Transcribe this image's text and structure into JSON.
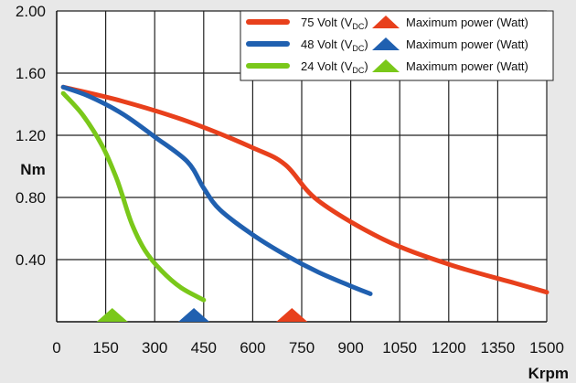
{
  "chart_data": {
    "type": "line",
    "title": "",
    "xlabel": "Krpm",
    "ylabel": "Nm",
    "xlim": [
      0,
      1500
    ],
    "ylim": [
      0,
      2.0
    ],
    "x_ticks": [
      "0",
      "150",
      "300",
      "450",
      "600",
      "750",
      "900",
      "1050",
      "1200",
      "1350",
      "1500"
    ],
    "x_tick_values": [
      0,
      150,
      300,
      450,
      600,
      750,
      900,
      1050,
      1200,
      1350,
      1500
    ],
    "y_ticks": [
      "0.40",
      "0.80",
      "1.20",
      "1.60",
      "2.00"
    ],
    "y_tick_values": [
      0.4,
      0.8,
      1.2,
      1.6,
      2.0
    ],
    "grid": true,
    "legend_position": "top-right",
    "series": [
      {
        "name": "75 Volt",
        "color": "#e8401c",
        "marker_label": "Maximum power (Watt)",
        "max_power_x": 720,
        "x": [
          20,
          200,
          400,
          600,
          700,
          800,
          1000,
          1200,
          1400,
          1500
        ],
        "y": [
          1.51,
          1.42,
          1.29,
          1.12,
          1.01,
          0.78,
          0.53,
          0.37,
          0.25,
          0.19
        ]
      },
      {
        "name": "48 Volt",
        "color": "#2060b0",
        "marker_label": "Maximum power (Watt)",
        "max_power_x": 420,
        "x": [
          20,
          100,
          200,
          300,
          400,
          450,
          500,
          600,
          700,
          800,
          900,
          960
        ],
        "y": [
          1.51,
          1.45,
          1.34,
          1.19,
          1.03,
          0.86,
          0.72,
          0.56,
          0.43,
          0.32,
          0.23,
          0.18
        ]
      },
      {
        "name": "24 Volt",
        "color": "#7ac81a",
        "marker_label": "Maximum power (Watt)",
        "max_power_x": 170,
        "x": [
          20,
          80,
          140,
          180,
          200,
          230,
          270,
          320,
          380,
          450
        ],
        "y": [
          1.47,
          1.33,
          1.13,
          0.94,
          0.82,
          0.63,
          0.46,
          0.33,
          0.22,
          0.14
        ]
      }
    ]
  },
  "legend": {
    "volt_suffix": "(V",
    "dc_sub": "DC",
    "close_paren": ")"
  }
}
